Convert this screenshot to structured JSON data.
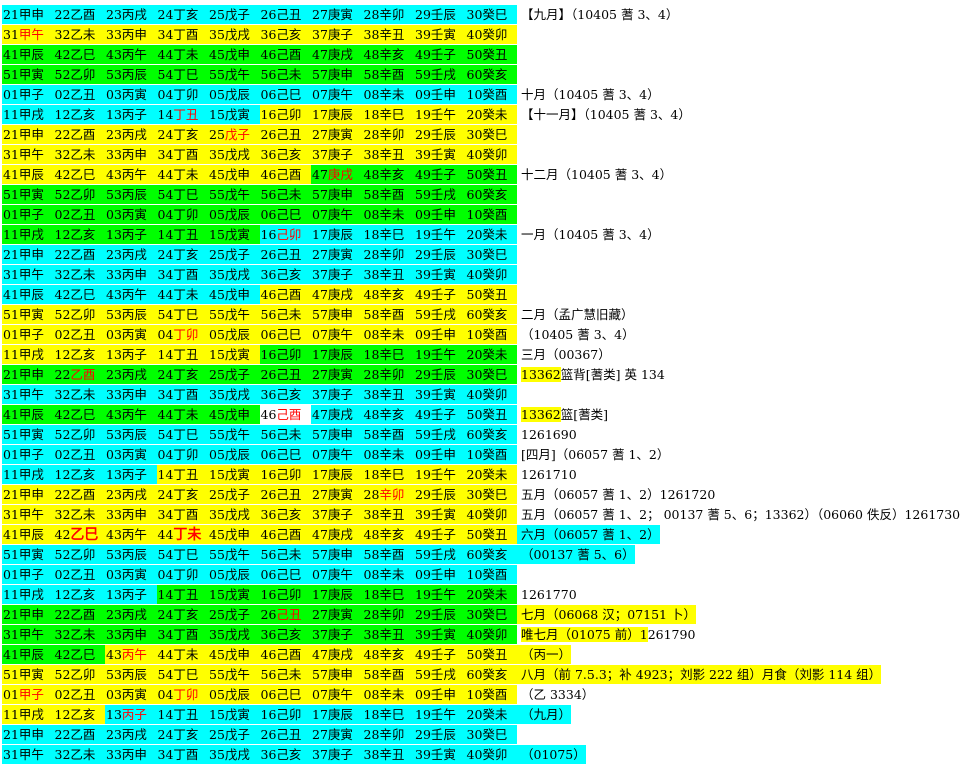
{
  "palette": {
    "c": "#00ffff",
    "g": "#00ff00",
    "y": "#ffff00",
    "w": "#ffffff",
    "red": "#ff0000"
  },
  "rows": [
    {
      "bg": [
        "c",
        "c",
        "c",
        "c",
        "c",
        "c",
        "c",
        "c",
        "c",
        "c"
      ],
      "start": 21,
      "note": "【九月】（10405 蓍 3、4）"
    },
    {
      "bg": [
        "y",
        "y",
        "y",
        "y",
        "y",
        "y",
        "y",
        "y",
        "y",
        "y"
      ],
      "start": 31,
      "red": [
        0
      ],
      "note": ""
    },
    {
      "bg": [
        "g",
        "g",
        "g",
        "g",
        "g",
        "g",
        "g",
        "g",
        "g",
        "g"
      ],
      "start": 41,
      "note": ""
    },
    {
      "bg": [
        "g",
        "g",
        "g",
        "g",
        "g",
        "g",
        "g",
        "g",
        "g",
        "g"
      ],
      "start": 51,
      "note": ""
    },
    {
      "bg": [
        "c",
        "c",
        "c",
        "c",
        "c",
        "c",
        "c",
        "c",
        "c",
        "c"
      ],
      "start": 1,
      "note": "十月（10405 蓍 3、4）"
    },
    {
      "bg": [
        "c",
        "c",
        "c",
        "c",
        "c",
        "y",
        "y",
        "y",
        "y",
        "y"
      ],
      "start": 11,
      "red": [
        3
      ],
      "note": "【十一月】（10405 蓍 3、4）"
    },
    {
      "bg": [
        "y",
        "y",
        "y",
        "y",
        "y",
        "y",
        "y",
        "y",
        "y",
        "y"
      ],
      "start": 21,
      "red": [
        4
      ],
      "note": ""
    },
    {
      "bg": [
        "y",
        "y",
        "y",
        "y",
        "y",
        "y",
        "y",
        "y",
        "y",
        "y"
      ],
      "start": 31,
      "note": ""
    },
    {
      "bg": [
        "y",
        "y",
        "y",
        "y",
        "y",
        "y",
        "g",
        "g",
        "g",
        "g"
      ],
      "start": 41,
      "red": [
        6
      ],
      "note": "十二月（10405 蓍 3、4）"
    },
    {
      "bg": [
        "g",
        "g",
        "g",
        "g",
        "g",
        "g",
        "g",
        "g",
        "g",
        "g"
      ],
      "start": 51,
      "note": ""
    },
    {
      "bg": [
        "g",
        "g",
        "g",
        "g",
        "g",
        "g",
        "g",
        "g",
        "g",
        "g"
      ],
      "start": 1,
      "note": ""
    },
    {
      "bg": [
        "g",
        "g",
        "g",
        "g",
        "g",
        "c",
        "c",
        "c",
        "c",
        "c"
      ],
      "start": 11,
      "red": [
        5
      ],
      "note": "一月（10405 蓍 3、4）"
    },
    {
      "bg": [
        "c",
        "c",
        "c",
        "c",
        "c",
        "c",
        "c",
        "c",
        "c",
        "c"
      ],
      "start": 21,
      "note": ""
    },
    {
      "bg": [
        "c",
        "c",
        "c",
        "c",
        "c",
        "c",
        "c",
        "c",
        "c",
        "c"
      ],
      "start": 31,
      "note": ""
    },
    {
      "bg": [
        "c",
        "c",
        "c",
        "c",
        "c",
        "y",
        "y",
        "y",
        "y",
        "y"
      ],
      "start": 41,
      "note": ""
    },
    {
      "bg": [
        "y",
        "y",
        "y",
        "y",
        "y",
        "y",
        "y",
        "y",
        "y",
        "y"
      ],
      "start": 51,
      "note": "二月（孟广慧旧藏）"
    },
    {
      "bg": [
        "y",
        "y",
        "y",
        "y",
        "y",
        "y",
        "y",
        "y",
        "y",
        "y"
      ],
      "start": 1,
      "red": [
        3
      ],
      "note": "（10405 蓍 3、4）"
    },
    {
      "bg": [
        "y",
        "y",
        "y",
        "y",
        "y",
        "g",
        "g",
        "g",
        "g",
        "g"
      ],
      "start": 11,
      "note": "三月（00367）"
    },
    {
      "bg": [
        "g",
        "g",
        "g",
        "g",
        "g",
        "g",
        "g",
        "g",
        "g",
        "g"
      ],
      "start": 21,
      "red": [
        1
      ],
      "note": "13362篮背[蓍类] 英 134",
      "noteHiLen": 5
    },
    {
      "bg": [
        "c",
        "c",
        "c",
        "c",
        "c",
        "c",
        "c",
        "c",
        "c",
        "c"
      ],
      "start": 31,
      "note": ""
    },
    {
      "bg": [
        "g",
        "g",
        "g",
        "g",
        "g",
        "w",
        "c",
        "c",
        "c",
        "c"
      ],
      "start": 41,
      "red": [
        5
      ],
      "note": "13362篮[蓍类]",
      "noteHiLen": 5
    },
    {
      "bg": [
        "c",
        "c",
        "c",
        "c",
        "c",
        "c",
        "c",
        "c",
        "c",
        "c"
      ],
      "start": 51,
      "note": "1261690"
    },
    {
      "bg": [
        "c",
        "c",
        "c",
        "c",
        "c",
        "c",
        "c",
        "c",
        "c",
        "c"
      ],
      "start": 1,
      "note": "[四月]（06057 蓍 1、2）"
    },
    {
      "bg": [
        "c",
        "c",
        "c",
        "y",
        "y",
        "y",
        "y",
        "y",
        "y",
        "y"
      ],
      "start": 11,
      "note": "1261710"
    },
    {
      "bg": [
        "y",
        "y",
        "y",
        "y",
        "y",
        "y",
        "y",
        "y",
        "y",
        "y"
      ],
      "start": 21,
      "red": [
        7
      ],
      "note": "五月（06057 蓍 1、2）1261720"
    },
    {
      "bg": [
        "y",
        "y",
        "y",
        "y",
        "y",
        "y",
        "y",
        "y",
        "y",
        "y"
      ],
      "start": 31,
      "note": "五月（06057 蓍 1、2； 00137 蓍 5、6；13362）（06060 佚反）1261730"
    },
    {
      "bg": [
        "y",
        "y",
        "y",
        "y",
        "y",
        "y",
        "y",
        "y",
        "y",
        "y"
      ],
      "start": 41,
      "red": [
        1,
        3
      ],
      "bold": [
        1,
        3
      ],
      "note": "六月（06057 蓍 1、2）",
      "noteBg": "c"
    },
    {
      "bg": [
        "c",
        "c",
        "c",
        "c",
        "c",
        "c",
        "c",
        "c",
        "c",
        "c"
      ],
      "start": 51,
      "note": "（00137 蓍 5、6）",
      "noteBg": "c"
    },
    {
      "bg": [
        "c",
        "c",
        "c",
        "c",
        "c",
        "c",
        "c",
        "c",
        "c",
        "c"
      ],
      "start": 1,
      "note": ""
    },
    {
      "bg": [
        "c",
        "c",
        "c",
        "g",
        "g",
        "g",
        "g",
        "g",
        "g",
        "g"
      ],
      "start": 11,
      "note": "1261770"
    },
    {
      "bg": [
        "g",
        "g",
        "g",
        "g",
        "g",
        "g",
        "g",
        "g",
        "g",
        "g"
      ],
      "start": 21,
      "red": [
        5
      ],
      "note": "七月（06068 汉；07151 卜）",
      "noteBg": "y"
    },
    {
      "bg": [
        "g",
        "g",
        "g",
        "g",
        "g",
        "g",
        "g",
        "g",
        "g",
        "g"
      ],
      "start": 31,
      "note": "唯七月（01075 前）1261790",
      "noteHiLen": 13
    },
    {
      "bg": [
        "g",
        "g",
        "y",
        "y",
        "y",
        "y",
        "y",
        "y",
        "y",
        "y"
      ],
      "start": 41,
      "red": [
        2
      ],
      "note": "（丙一）",
      "noteBg": "y"
    },
    {
      "bg": [
        "y",
        "y",
        "y",
        "y",
        "y",
        "y",
        "y",
        "y",
        "y",
        "y"
      ],
      "start": 51,
      "note": "八月（前 7.5.3；补 4923；刘影 222 组）月食（刘影 114 组）",
      "noteBg": "y"
    },
    {
      "bg": [
        "y",
        "y",
        "y",
        "y",
        "y",
        "y",
        "y",
        "y",
        "y",
        "y"
      ],
      "start": 1,
      "red": [
        0,
        3
      ],
      "note": "（乙 3334）"
    },
    {
      "bg": [
        "y",
        "y",
        "c",
        "c",
        "c",
        "c",
        "c",
        "c",
        "c",
        "c"
      ],
      "start": 11,
      "red": [
        2
      ],
      "note": "（九月）",
      "noteBg": "c"
    },
    {
      "bg": [
        "c",
        "c",
        "c",
        "c",
        "c",
        "c",
        "c",
        "c",
        "c",
        "c"
      ],
      "start": 21,
      "note": ""
    },
    {
      "bg": [
        "c",
        "c",
        "c",
        "c",
        "c",
        "c",
        "c",
        "c",
        "c",
        "c"
      ],
      "start": 31,
      "note": "（01075）",
      "noteBg": "c"
    }
  ]
}
